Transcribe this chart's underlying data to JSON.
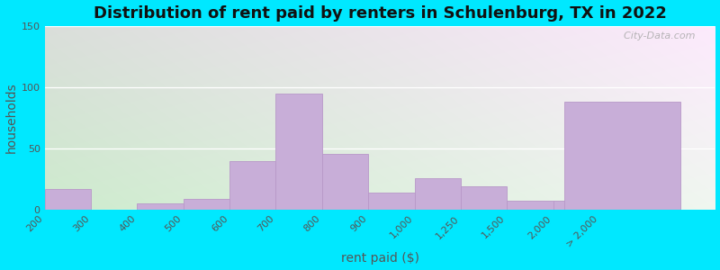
{
  "title": "Distribution of rent paid by renters in Schulenburg, TX in 2022",
  "xlabel": "rent paid ($)",
  "ylabel": "households",
  "bar_color": "#c8aed8",
  "bar_edge_color": "#b898c8",
  "background_outer": "#00e8ff",
  "ylim": [
    0,
    150
  ],
  "yticks": [
    0,
    50,
    100,
    150
  ],
  "categories": [
    "200",
    "300",
    "400",
    "500",
    "600",
    "700",
    "800",
    "900",
    "1,000",
    "1,250",
    "1,500",
    "2,000",
    "> 2,000"
  ],
  "values": [
    17,
    0,
    5,
    9,
    40,
    95,
    46,
    14,
    26,
    19,
    7,
    7,
    88
  ],
  "title_fontsize": 13,
  "axis_label_fontsize": 10,
  "tick_fontsize": 8,
  "watermark": "  City-Data.com",
  "grad_top": "#eaf5e8",
  "grad_bottom": "#c8ecd0",
  "grad_right": "#f5f8f0"
}
